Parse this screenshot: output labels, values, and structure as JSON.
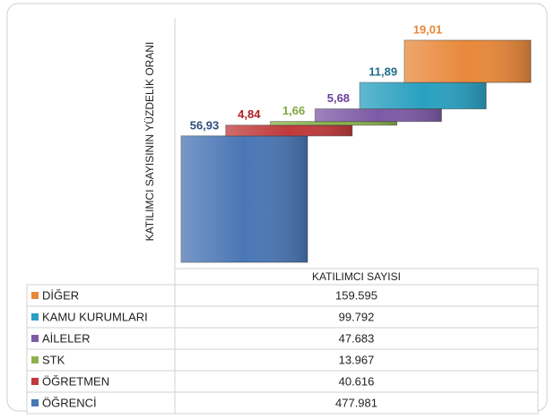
{
  "chart_data": {
    "type": "bar",
    "y_label": "KATILIMCI SAYISININ YÜZDELİK ORANI",
    "categories": [
      "KATILIMCI SAYISI"
    ],
    "ylim": [
      0,
      100
    ],
    "series": [
      {
        "name": "DİĞER",
        "color": "#e8883a",
        "label_color": "#e8883a",
        "values": [
          19.01
        ],
        "value_labels": [
          "19,01"
        ],
        "table": [
          "159.595"
        ]
      },
      {
        "name": "KAMU KURUMLARI",
        "color": "#2aa0c0",
        "label_color": "#1f6f8a",
        "values": [
          11.89
        ],
        "value_labels": [
          "11,89"
        ],
        "table": [
          "99.792"
        ]
      },
      {
        "name": "AİLELER",
        "color": "#7d5aa6",
        "label_color": "#6a3f9a",
        "values": [
          5.68
        ],
        "value_labels": [
          "5,68"
        ],
        "table": [
          "47.683"
        ]
      },
      {
        "name": "STK",
        "color": "#8ab34a",
        "label_color": "#7ea83a",
        "values": [
          1.66
        ],
        "value_labels": [
          "1,66"
        ],
        "table": [
          "13.967"
        ]
      },
      {
        "name": "ÖĞRETMEN",
        "color": "#c0393b",
        "label_color": "#b02020",
        "values": [
          4.84
        ],
        "value_labels": [
          "4,84"
        ],
        "table": [
          "40.616"
        ]
      },
      {
        "name": "ÖĞRENCİ",
        "color": "#4a76b5",
        "label_color": "#2e4f80",
        "values": [
          56.93
        ],
        "value_labels": [
          "56,93"
        ],
        "table": [
          "477.981"
        ]
      }
    ]
  }
}
